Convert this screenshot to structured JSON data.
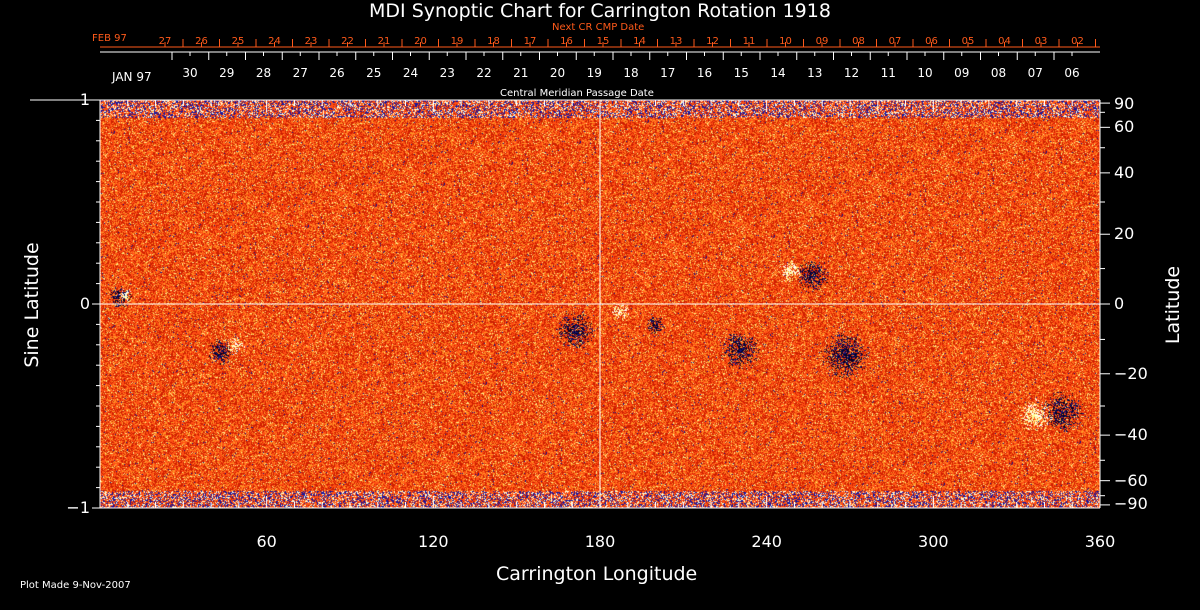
{
  "chart_data": {
    "type": "heatmap",
    "title": "MDI Synoptic Chart for Carrington Rotation 1918",
    "xlabel": "Carrington Longitude",
    "ylabel_left": "Sine Latitude",
    "ylabel_right": "Latitude",
    "xlim": [
      0,
      360
    ],
    "ylim_sine": [
      -1,
      1
    ],
    "x_ticks": [
      "60",
      "120",
      "180",
      "240",
      "300",
      "360"
    ],
    "x_tick_values": [
      60,
      120,
      180,
      240,
      300,
      360
    ],
    "y_left_ticks": [
      "1",
      "0",
      "−1"
    ],
    "y_left_values": [
      1,
      0,
      -1
    ],
    "y_right_ticks": [
      "90",
      "60",
      "40",
      "20",
      "0",
      "−20",
      "−40",
      "−60",
      "−90"
    ],
    "y_right_values": [
      90,
      60,
      40,
      20,
      0,
      -20,
      -40,
      -60,
      -90
    ],
    "top_axis_1": {
      "label": "Next CR CMP Date",
      "month_label": "FEB 97",
      "ticks": [
        "27",
        "26",
        "25",
        "24",
        "23",
        "22",
        "21",
        "20",
        "19",
        "18",
        "17",
        "16",
        "15",
        "14",
        "13",
        "12",
        "11",
        "10",
        "09",
        "08",
        "07",
        "06",
        "05",
        "04",
        "03",
        "02"
      ],
      "color": "#ff5a1a"
    },
    "top_axis_2": {
      "label": "Central Meridian Passage Date",
      "month_label": "JAN 97",
      "ticks": [
        "30",
        "29",
        "28",
        "27",
        "26",
        "25",
        "24",
        "23",
        "22",
        "21",
        "20",
        "19",
        "18",
        "17",
        "16",
        "15",
        "14",
        "13",
        "12",
        "11",
        "10",
        "09",
        "08",
        "07",
        "06"
      ]
    },
    "colormap": [
      "#0a0a60",
      "#000000",
      "#c01800",
      "#ff4a10",
      "#ff9a20",
      "#ffff80",
      "#ffffff"
    ],
    "grid_lines": {
      "longitude": 180,
      "sine_latitude": 0
    }
  },
  "footer": {
    "plot_made": "Plot Made  9-Nov-2007"
  }
}
